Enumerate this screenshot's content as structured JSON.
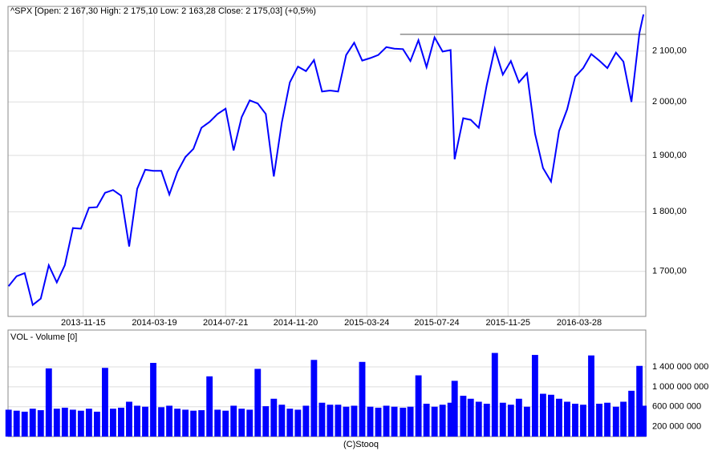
{
  "chart_data": [
    {
      "type": "line",
      "title": "^SPX [Open: 2 167,30  High: 2 175,10  Low: 2 163,28  Close: 2 175,03] (+0,5%)",
      "log_scale": true,
      "grid": true,
      "color": "#0000ff",
      "xlim": [
        "2013-07-07",
        "2016-07-22"
      ],
      "xticks": [
        "2013-11-15",
        "2014-03-19",
        "2014-07-21",
        "2014-11-20",
        "2015-03-24",
        "2015-07-24",
        "2015-11-25",
        "2016-03-28"
      ],
      "ylim": [
        1628,
        2192
      ],
      "yticks": [
        {
          "value": 1700,
          "label": "1 700,00"
        },
        {
          "value": 1800,
          "label": "1 800,00"
        },
        {
          "value": 1900,
          "label": "1 900,00"
        },
        {
          "value": 2000,
          "label": "2 000,00"
        },
        {
          "value": 2100,
          "label": "2 100,00"
        }
      ],
      "reference_line": {
        "value": 2134,
        "from": "2015-05-21"
      },
      "x": [
        "2013-07-08",
        "2013-07-22",
        "2013-08-05",
        "2013-08-19",
        "2013-09-02",
        "2013-09-16",
        "2013-09-30",
        "2013-10-14",
        "2013-10-28",
        "2013-11-11",
        "2013-11-25",
        "2013-12-09",
        "2013-12-23",
        "2014-01-06",
        "2014-01-20",
        "2014-02-03",
        "2014-02-17",
        "2014-03-03",
        "2014-03-17",
        "2014-03-31",
        "2014-04-14",
        "2014-04-28",
        "2014-05-12",
        "2014-05-26",
        "2014-06-09",
        "2014-06-23",
        "2014-07-07",
        "2014-07-21",
        "2014-08-04",
        "2014-08-18",
        "2014-09-01",
        "2014-09-15",
        "2014-09-29",
        "2014-10-13",
        "2014-10-27",
        "2014-11-10",
        "2014-11-24",
        "2014-12-08",
        "2014-12-22",
        "2015-01-05",
        "2015-01-19",
        "2015-02-02",
        "2015-02-16",
        "2015-03-02",
        "2015-03-16",
        "2015-03-30",
        "2015-04-13",
        "2015-04-27",
        "2015-05-11",
        "2015-05-26",
        "2015-06-08",
        "2015-06-22",
        "2015-07-06",
        "2015-07-20",
        "2015-08-03",
        "2015-08-17",
        "2015-08-24",
        "2015-09-08",
        "2015-09-21",
        "2015-10-05",
        "2015-10-19",
        "2015-11-02",
        "2015-11-16",
        "2015-11-30",
        "2015-12-14",
        "2015-12-28",
        "2016-01-11",
        "2016-01-25",
        "2016-02-08",
        "2016-02-22",
        "2016-03-07",
        "2016-03-21",
        "2016-04-04",
        "2016-04-18",
        "2016-05-02",
        "2016-05-16",
        "2016-05-31",
        "2016-06-13",
        "2016-06-27",
        "2016-07-11",
        "2016-07-18"
      ],
      "values": [
        1676,
        1692,
        1697,
        1646,
        1656,
        1710,
        1682,
        1710,
        1772,
        1771,
        1807,
        1808,
        1833,
        1838,
        1828,
        1741,
        1840,
        1874,
        1872,
        1872,
        1830,
        1870,
        1897,
        1912,
        1951,
        1962,
        1977,
        1987,
        1909,
        1971,
        2003,
        1997,
        1977,
        1862,
        1961,
        2038,
        2069,
        2060,
        2082,
        2020,
        2022,
        2020,
        2092,
        2117,
        2081,
        2086,
        2092,
        2108,
        2105,
        2104,
        2080,
        2122,
        2068,
        2128,
        2099,
        2102,
        1893,
        1969,
        1966,
        1951,
        2033,
        2105,
        2053,
        2080,
        2038,
        2056,
        1940,
        1877,
        1853,
        1945,
        1986,
        2049,
        2066,
        2094,
        2081,
        2066,
        2097,
        2079,
        2000,
        2137,
        2175
      ]
    },
    {
      "type": "bar",
      "title": "VOL - Volume [0]",
      "grid": true,
      "color": "#0000ff",
      "xlim": [
        "2013-07-07",
        "2016-07-22"
      ],
      "ylim": [
        0,
        2140000000
      ],
      "yticks": [
        {
          "value": 200000000,
          "label": "200 000 000"
        },
        {
          "value": 600000000,
          "label": "600 000 000"
        },
        {
          "value": 1000000000,
          "label": "1 000 000 000"
        },
        {
          "value": 1400000000,
          "label": "1 400 000 000"
        }
      ],
      "x": [
        "2013-07-08",
        "2013-07-22",
        "2013-08-05",
        "2013-08-19",
        "2013-09-02",
        "2013-09-16",
        "2013-09-30",
        "2013-10-14",
        "2013-10-28",
        "2013-11-11",
        "2013-11-25",
        "2013-12-09",
        "2013-12-23",
        "2014-01-06",
        "2014-01-20",
        "2014-02-03",
        "2014-02-17",
        "2014-03-03",
        "2014-03-17",
        "2014-03-31",
        "2014-04-14",
        "2014-04-28",
        "2014-05-12",
        "2014-05-26",
        "2014-06-09",
        "2014-06-23",
        "2014-07-07",
        "2014-07-21",
        "2014-08-04",
        "2014-08-18",
        "2014-09-01",
        "2014-09-15",
        "2014-09-29",
        "2014-10-13",
        "2014-10-27",
        "2014-11-10",
        "2014-11-24",
        "2014-12-08",
        "2014-12-22",
        "2015-01-05",
        "2015-01-19",
        "2015-02-02",
        "2015-02-16",
        "2015-03-02",
        "2015-03-16",
        "2015-03-30",
        "2015-04-13",
        "2015-04-27",
        "2015-05-11",
        "2015-05-26",
        "2015-06-08",
        "2015-06-22",
        "2015-07-06",
        "2015-07-20",
        "2015-08-03",
        "2015-08-17",
        "2015-08-24",
        "2015-09-08",
        "2015-09-21",
        "2015-10-05",
        "2015-10-19",
        "2015-11-02",
        "2015-11-16",
        "2015-11-30",
        "2015-12-14",
        "2015-12-28",
        "2016-01-11",
        "2016-01-25",
        "2016-02-08",
        "2016-02-22",
        "2016-03-07",
        "2016-03-21",
        "2016-04-04",
        "2016-04-18",
        "2016-05-02",
        "2016-05-16",
        "2016-05-31",
        "2016-06-13",
        "2016-06-27",
        "2016-07-11",
        "2016-07-18"
      ],
      "values": [
        540000000,
        520000000,
        500000000,
        560000000,
        530000000,
        1370000000,
        560000000,
        580000000,
        540000000,
        520000000,
        560000000,
        500000000,
        1380000000,
        560000000,
        580000000,
        700000000,
        620000000,
        600000000,
        1480000000,
        590000000,
        620000000,
        560000000,
        540000000,
        520000000,
        530000000,
        1210000000,
        540000000,
        520000000,
        620000000,
        560000000,
        540000000,
        1360000000,
        610000000,
        760000000,
        640000000,
        560000000,
        540000000,
        620000000,
        1540000000,
        680000000,
        640000000,
        640000000,
        600000000,
        620000000,
        1500000000,
        600000000,
        580000000,
        620000000,
        600000000,
        580000000,
        600000000,
        1230000000,
        660000000,
        600000000,
        640000000,
        680000000,
        1120000000,
        820000000,
        760000000,
        700000000,
        660000000,
        1680000000,
        680000000,
        640000000,
        760000000,
        600000000,
        1640000000,
        860000000,
        840000000,
        760000000,
        700000000,
        660000000,
        640000000,
        1630000000,
        660000000,
        680000000,
        600000000,
        700000000,
        920000000,
        1420000000,
        620000000
      ]
    }
  ]
}
